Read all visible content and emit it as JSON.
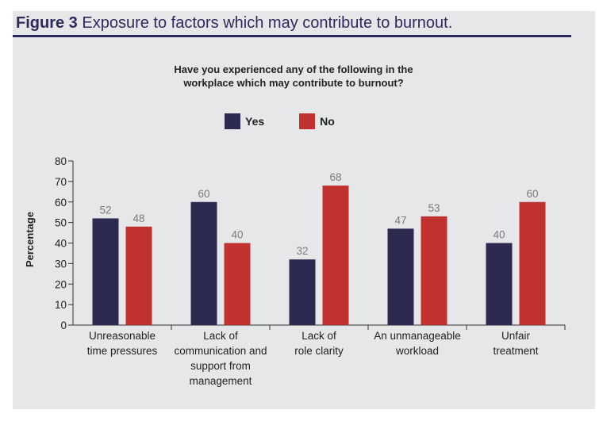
{
  "figure": {
    "label": "Figure 3",
    "title": "Exposure to factors which may contribute to burnout."
  },
  "colors": {
    "yes": "#2d2a52",
    "no": "#c0312f",
    "title": "#2d2a5c",
    "panel": "#e6e7e9"
  },
  "chart_data": {
    "type": "bar",
    "title": "Have you experienced any of the following in the workplace which may contribute to burnout?",
    "title_lines": [
      "Have you experienced any of the following in the",
      "workplace which may contribute to burnout?"
    ],
    "ylabel": "Percentage",
    "xlabel": "",
    "ylim": [
      0,
      80
    ],
    "yticks": [
      0,
      10,
      20,
      30,
      40,
      50,
      60,
      70,
      80
    ],
    "legend_position": "top",
    "categories": [
      [
        "Unreasonable",
        "time pressures"
      ],
      [
        "Lack of",
        "communication and",
        "support from",
        "management"
      ],
      [
        "Lack of",
        "role clarity"
      ],
      [
        "An unmanageable",
        "workload"
      ],
      [
        "Unfair",
        "treatment"
      ]
    ],
    "series": [
      {
        "name": "Yes",
        "values": [
          52,
          60,
          32,
          47,
          40
        ]
      },
      {
        "name": "No",
        "values": [
          48,
          40,
          68,
          53,
          60
        ]
      }
    ]
  }
}
